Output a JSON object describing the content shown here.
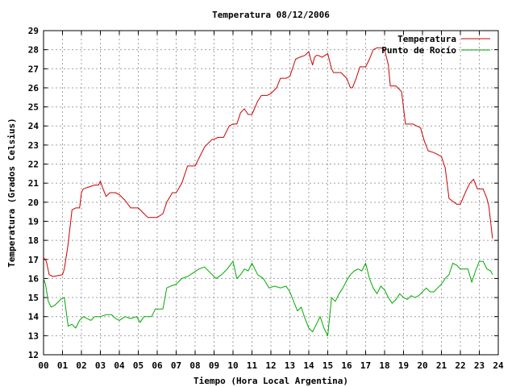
{
  "chart_data": {
    "type": "line",
    "title": "Temperatura 08/12/2006",
    "xlabel": "Tiempo (Hora Local Argentina)",
    "ylabel": "Temperatura (Grados Celsius)",
    "xlim": [
      0,
      24
    ],
    "ylim": [
      12,
      29
    ],
    "grid": true,
    "legend_position": "top-right",
    "x_ticks": [
      "00",
      "01",
      "02",
      "03",
      "04",
      "05",
      "06",
      "07",
      "08",
      "09",
      "10",
      "11",
      "12",
      "13",
      "14",
      "15",
      "16",
      "17",
      "18",
      "19",
      "20",
      "21",
      "22",
      "23",
      "24"
    ],
    "y_ticks": [
      12,
      13,
      14,
      15,
      16,
      17,
      18,
      19,
      20,
      21,
      22,
      23,
      24,
      25,
      26,
      27,
      28,
      29
    ],
    "series": [
      {
        "name": "Temperatura",
        "color": "#cc0000",
        "x": [
          0,
          0.15,
          0.3,
          0.5,
          1.0,
          1.1,
          1.3,
          1.5,
          1.7,
          1.9,
          2.0,
          2.1,
          2.4,
          2.7,
          2.9,
          3.0,
          3.1,
          3.3,
          3.5,
          3.8,
          4.0,
          4.3,
          4.6,
          5.0,
          5.3,
          5.5,
          6.0,
          6.3,
          6.5,
          6.8,
          7.0,
          7.3,
          7.6,
          8.0,
          8.2,
          8.5,
          8.9,
          9.0,
          9.2,
          9.5,
          9.8,
          10.0,
          10.2,
          10.4,
          10.6,
          10.8,
          11.0,
          11.3,
          11.5,
          11.8,
          12.0,
          12.3,
          12.5,
          12.8,
          13.0,
          13.3,
          13.5,
          13.8,
          14.0,
          14.1,
          14.2,
          14.3,
          14.4,
          14.5,
          14.7,
          15.0,
          15.2,
          15.3,
          15.5,
          15.7,
          16.0,
          16.2,
          16.3,
          16.5,
          16.7,
          17.0,
          17.2,
          17.4,
          17.6,
          17.8,
          18.0,
          18.2,
          18.3,
          18.6,
          18.9,
          19.1,
          19.5,
          19.9,
          20.1,
          20.3,
          20.6,
          21.0,
          21.2,
          21.4,
          21.8,
          22.0,
          22.3,
          22.5,
          22.7,
          22.9,
          23.0,
          23.2,
          23.4,
          23.5,
          23.7
        ],
        "y": [
          17.1,
          16.9,
          16.2,
          16.1,
          16.2,
          16.5,
          17.8,
          19.6,
          19.7,
          19.7,
          20.5,
          20.7,
          20.8,
          20.9,
          20.9,
          21.1,
          20.8,
          20.3,
          20.5,
          20.5,
          20.4,
          20.1,
          19.7,
          19.7,
          19.4,
          19.2,
          19.2,
          19.4,
          20.0,
          20.5,
          20.5,
          21.0,
          21.9,
          21.9,
          22.3,
          22.9,
          23.3,
          23.3,
          23.4,
          23.4,
          24.0,
          24.1,
          24.1,
          24.7,
          24.9,
          24.6,
          24.6,
          25.3,
          25.6,
          25.6,
          25.7,
          26.0,
          26.5,
          26.5,
          26.6,
          27.5,
          27.6,
          27.7,
          27.9,
          27.5,
          27.2,
          27.6,
          27.7,
          27.7,
          27.6,
          27.8,
          27.0,
          26.8,
          26.8,
          26.8,
          26.5,
          26.0,
          26.0,
          26.5,
          27.1,
          27.1,
          27.5,
          28.0,
          28.1,
          28.1,
          28.0,
          27.2,
          26.1,
          26.1,
          25.8,
          24.1,
          24.1,
          23.9,
          23.2,
          22.7,
          22.6,
          22.4,
          21.8,
          20.2,
          19.9,
          19.9,
          20.6,
          21.0,
          21.2,
          20.7,
          20.7,
          20.7,
          20.2,
          19.8,
          18.1
        ]
      },
      {
        "name": "Punto de Rocío",
        "color": "#00aa00",
        "x": [
          0,
          0.1,
          0.25,
          0.4,
          0.6,
          0.9,
          1.1,
          1.3,
          1.5,
          1.7,
          1.9,
          2.1,
          2.3,
          2.5,
          2.7,
          3.0,
          3.3,
          3.6,
          3.8,
          4.0,
          4.3,
          4.6,
          4.9,
          5.1,
          5.3,
          5.5,
          5.7,
          5.9,
          6.1,
          6.3,
          6.5,
          6.7,
          7.0,
          7.3,
          7.6,
          7.9,
          8.2,
          8.5,
          8.8,
          9.1,
          9.4,
          9.7,
          10.0,
          10.2,
          10.4,
          10.6,
          10.8,
          11.0,
          11.3,
          11.6,
          11.9,
          12.2,
          12.5,
          12.8,
          13.0,
          13.2,
          13.4,
          13.6,
          13.8,
          14.0,
          14.2,
          14.4,
          14.6,
          14.8,
          15.0,
          15.2,
          15.4,
          15.6,
          15.8,
          16.0,
          16.2,
          16.4,
          16.6,
          16.8,
          17.0,
          17.2,
          17.4,
          17.6,
          17.8,
          18.0,
          18.2,
          18.4,
          18.6,
          18.8,
          19.0,
          19.2,
          19.4,
          19.6,
          19.8,
          20.0,
          20.2,
          20.4,
          20.6,
          20.8,
          21.0,
          21.2,
          21.4,
          21.6,
          21.8,
          22.0,
          22.2,
          22.4,
          22.6,
          22.8,
          23.0,
          23.2,
          23.4,
          23.6,
          23.7
        ],
        "y": [
          16.0,
          15.7,
          14.8,
          14.5,
          14.6,
          14.9,
          15.0,
          13.5,
          13.6,
          13.4,
          13.8,
          14.0,
          13.9,
          13.8,
          14.0,
          14.0,
          14.1,
          14.1,
          13.9,
          13.8,
          14.0,
          13.9,
          14.0,
          13.7,
          14.0,
          14.0,
          14.0,
          14.4,
          14.4,
          14.4,
          15.5,
          15.6,
          15.7,
          16.0,
          16.1,
          16.3,
          16.5,
          16.6,
          16.3,
          16.0,
          16.2,
          16.5,
          16.9,
          16.0,
          16.2,
          16.5,
          16.4,
          16.8,
          16.2,
          16.0,
          15.5,
          15.6,
          15.5,
          15.6,
          15.3,
          14.8,
          14.3,
          14.5,
          13.9,
          13.4,
          13.2,
          13.6,
          14.0,
          13.4,
          13.0,
          15.0,
          14.8,
          15.2,
          15.5,
          15.9,
          16.2,
          16.4,
          16.5,
          16.4,
          16.8,
          16.0,
          15.5,
          15.2,
          15.6,
          15.4,
          15.0,
          14.7,
          14.9,
          15.2,
          15.0,
          14.9,
          15.1,
          15.0,
          15.1,
          15.3,
          15.5,
          15.3,
          15.3,
          15.5,
          15.7,
          16.0,
          16.2,
          16.8,
          16.7,
          16.5,
          16.5,
          16.5,
          15.8,
          16.4,
          16.9,
          16.9,
          16.5,
          16.4,
          16.2
        ]
      }
    ]
  }
}
